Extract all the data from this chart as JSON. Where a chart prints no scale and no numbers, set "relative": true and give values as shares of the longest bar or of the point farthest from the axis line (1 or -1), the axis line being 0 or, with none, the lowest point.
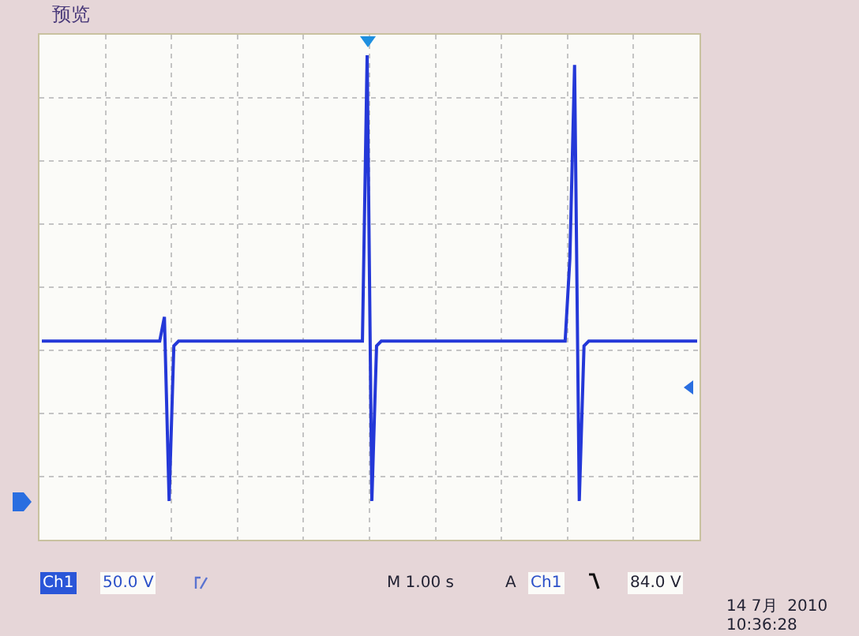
{
  "chart_data": {
    "type": "line",
    "title": "预览",
    "relative": true,
    "grid": true,
    "marker": "none",
    "line_style": "solid",
    "categories": [
      null,
      null,
      null,
      null,
      null,
      null,
      null,
      null,
      null,
      null,
      null,
      null,
      null,
      null,
      null,
      null,
      null,
      null,
      null,
      null,
      null,
      null,
      null,
      null,
      null,
      null,
      null,
      null,
      null,
      null,
      null,
      null,
      null,
      null,
      null,
      null,
      null,
      null,
      null,
      null,
      null,
      null,
      null,
      null,
      null,
      null,
      null,
      null,
      null,
      null,
      null,
      null,
      null,
      null,
      null,
      null,
      null,
      null,
      null,
      null,
      null,
      null,
      null,
      null,
      null,
      null,
      null,
      null,
      null,
      null,
      null,
      null,
      null,
      null,
      null,
      null,
      null,
      null,
      null,
      null,
      null,
      null,
      null,
      null,
      null,
      null,
      null,
      null,
      null,
      null,
      null,
      null,
      null,
      null,
      null,
      null,
      null,
      null,
      null,
      null,
      null,
      null,
      null,
      null,
      null,
      null,
      null,
      null,
      null,
      null,
      null,
      null,
      null,
      null,
      null,
      null,
      null,
      null,
      null,
      null,
      null,
      null,
      null,
      null,
      null,
      null,
      null,
      null,
      null,
      null,
      null,
      null,
      null,
      null,
      null,
      null,
      null,
      null,
      null,
      null
    ],
    "series": [
      {
        "color": "#2438d8",
        "values": [
          0.41,
          0.41,
          0.41,
          0.41,
          0.41,
          0.41,
          0.41,
          0.41,
          0.41,
          0.41,
          0.41,
          0.41,
          0.41,
          0.41,
          0.41,
          0.41,
          0.41,
          0.41,
          0.41,
          0.41,
          0.41,
          0.41,
          0.41,
          0.41,
          0.41,
          0.41,
          0.46,
          0.08,
          0.4,
          0.41,
          0.41,
          0.41,
          0.41,
          0.41,
          0.41,
          0.41,
          0.41,
          0.41,
          0.41,
          0.41,
          0.41,
          0.41,
          0.41,
          0.41,
          0.41,
          0.41,
          0.41,
          0.41,
          0.41,
          0.41,
          0.41,
          0.41,
          0.41,
          0.41,
          0.41,
          0.41,
          0.41,
          0.41,
          0.41,
          0.41,
          0.41,
          0.41,
          0.41,
          0.41,
          0.41,
          0.41,
          0.41,
          0.41,
          0.41,
          1,
          0.08,
          0.4,
          0.41,
          0.41,
          0.41,
          0.41,
          0.41,
          0.41,
          0.41,
          0.41,
          0.41,
          0.41,
          0.41,
          0.41,
          0.41,
          0.41,
          0.41,
          0.41,
          0.41,
          0.41,
          0.41,
          0.41,
          0.41,
          0.41,
          0.41,
          0.41,
          0.41,
          0.41,
          0.41,
          0.41,
          0.41,
          0.41,
          0.41,
          0.41,
          0.41,
          0.41,
          0.41,
          0.41,
          0.41,
          0.41,
          0.41,
          0.41,
          0.58,
          0.98,
          0.08,
          0.4,
          0.41,
          0.41,
          0.41,
          0.41,
          0.41,
          0.41,
          0.41,
          0.41,
          0.41,
          0.41,
          0.41,
          0.41,
          0.41,
          0.41,
          0.41,
          0.41,
          0.41,
          0.41,
          0.41,
          0.41,
          0.41,
          0.41,
          0.41,
          0.41
        ]
      }
    ],
    "annotations": [
      "Ch1",
      "50.0 V",
      "M 1.00 s",
      "A",
      "Ch1",
      "84.0 V",
      "14 7月  2010",
      "10:36:28"
    ]
  }
}
